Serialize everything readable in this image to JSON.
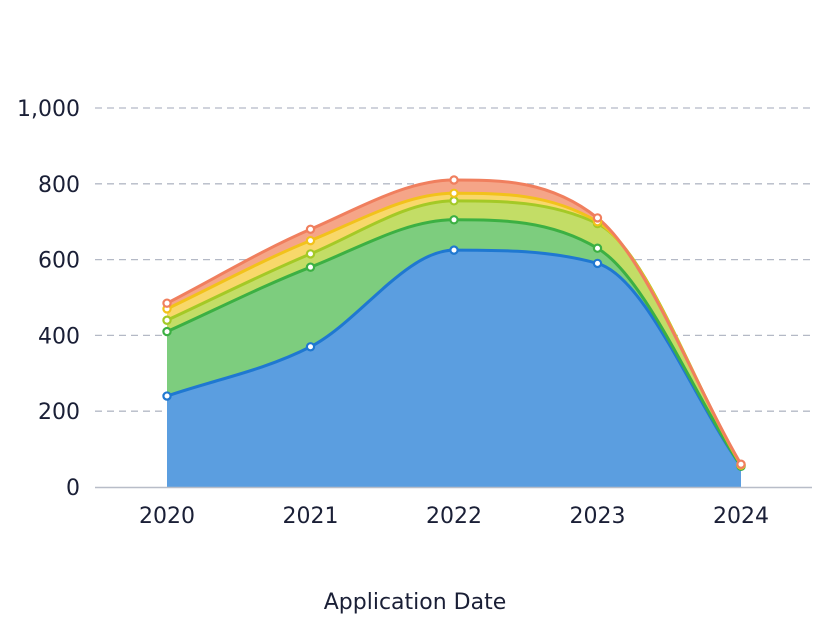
{
  "chart_data": {
    "type": "area",
    "stacked": true,
    "xlabel": "Application Date",
    "ylabel": "",
    "categories": [
      "2020",
      "2021",
      "2022",
      "2023",
      "2024"
    ],
    "ylim": [
      0,
      1000
    ],
    "yticks": [
      "0",
      "200",
      "400",
      "600",
      "800",
      "1,000"
    ],
    "grid": true,
    "legend": "none",
    "series": [
      {
        "values": [
          240,
          370,
          625,
          590,
          55
        ],
        "color": "#1f78d1",
        "fill": "#5b9ee0"
      },
      {
        "values": [
          170,
          210,
          80,
          40,
          0
        ],
        "color": "#3cb043",
        "fill": "#7dcd7e"
      },
      {
        "values": [
          30,
          35,
          50,
          65,
          3
        ],
        "color": "#a4c926",
        "fill": "#c3dd66"
      },
      {
        "values": [
          30,
          35,
          20,
          5,
          0
        ],
        "color": "#f2c21b",
        "fill": "#f8d86a"
      },
      {
        "values": [
          15,
          30,
          35,
          10,
          2
        ],
        "color": "#f07f5e",
        "fill": "#f5a588"
      }
    ]
  }
}
